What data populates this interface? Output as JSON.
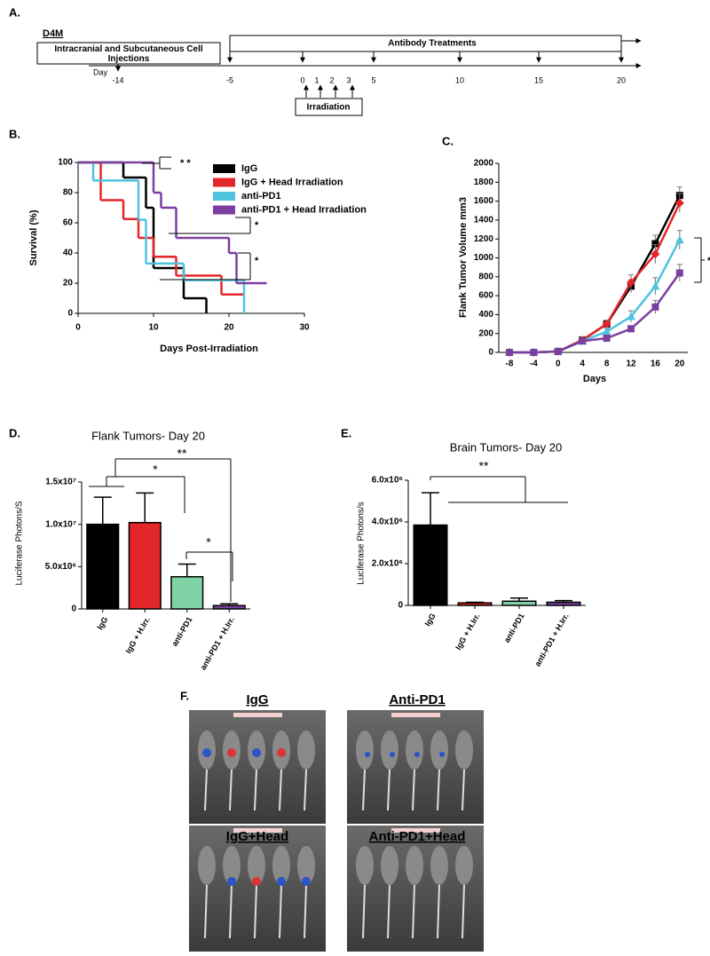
{
  "panels": {
    "a": "A.",
    "b": "B.",
    "c": "C.",
    "d": "D.",
    "e": "E.",
    "f": "F."
  },
  "timeline": {
    "model": "D4M",
    "injection": "Intracranial and Subcutaneous Cell Injections",
    "treatment": "Antibody Treatments",
    "day_label": "Day",
    "days": [
      -14,
      -5,
      0,
      1,
      2,
      3,
      5,
      10,
      15,
      20
    ],
    "irradiation": "Irradiation"
  },
  "chart_data": [
    {
      "type": "step",
      "ylabel": "Survival (%)",
      "xlabel": "Days Post-Irradiation",
      "xlim": [
        0,
        30
      ],
      "xticks": [
        0,
        10,
        20,
        30
      ],
      "ylim": [
        0,
        100
      ],
      "yticks": [
        0,
        20,
        40,
        60,
        80,
        100
      ],
      "series": [
        {
          "name": "IgG",
          "color": "#000000",
          "x": [
            0,
            6,
            9,
            10,
            14,
            17
          ],
          "values": [
            100,
            90,
            70,
            30,
            10,
            0
          ]
        },
        {
          "name": "IgG + Head Irradiation",
          "color": "#e3262a",
          "x": [
            0,
            3,
            6,
            8,
            10,
            13,
            19,
            22
          ],
          "values": [
            100,
            75,
            62.5,
            50,
            37.5,
            25,
            12.5,
            12.5
          ]
        },
        {
          "name": "anti-PD1",
          "color": "#4fc3de",
          "x": [
            0,
            2,
            8,
            9,
            14,
            22
          ],
          "values": [
            100,
            88,
            62,
            33,
            22,
            0
          ]
        },
        {
          "name": "anti-PD1 + Head Irradiation",
          "color": "#7b3fa0",
          "x": [
            0,
            10,
            11,
            13,
            20,
            21,
            25
          ],
          "values": [
            100,
            80,
            70,
            50,
            40,
            20,
            20
          ]
        }
      ],
      "annotations": [
        "* *",
        "*",
        "*"
      ]
    },
    {
      "type": "line",
      "ylabel": "Flank Tumor Volume mm3",
      "xlabel": "Days",
      "categories": [
        -8,
        -4,
        0,
        4,
        8,
        12,
        16,
        20
      ],
      "ylim": [
        0,
        2000
      ],
      "yticks": [
        0,
        200,
        400,
        600,
        800,
        1000,
        1200,
        1400,
        1600,
        1800,
        2000
      ],
      "series": [
        {
          "color": "#000000",
          "marker": "square",
          "values": [
            0,
            0,
            10,
            130,
            300,
            700,
            1150,
            1660
          ],
          "errors": [
            0,
            0,
            5,
            20,
            40,
            70,
            90,
            90
          ]
        },
        {
          "color": "#e3262a",
          "marker": "diamond",
          "values": [
            0,
            0,
            10,
            130,
            300,
            740,
            1040,
            1580
          ],
          "errors": [
            0,
            0,
            5,
            20,
            40,
            80,
            100,
            100
          ]
        },
        {
          "color": "#4fc3de",
          "marker": "triangle",
          "values": [
            0,
            0,
            10,
            120,
            220,
            380,
            700,
            1190
          ],
          "errors": [
            0,
            0,
            5,
            15,
            30,
            60,
            90,
            100
          ]
        },
        {
          "color": "#7b3fa0",
          "marker": "square",
          "values": [
            0,
            0,
            10,
            120,
            150,
            250,
            480,
            840
          ],
          "errors": [
            0,
            0,
            5,
            15,
            20,
            30,
            70,
            90
          ]
        }
      ],
      "annotations": [
        "*"
      ]
    },
    {
      "type": "bar",
      "title": "Flank Tumors- Day 20",
      "ylabel": "Luciferase Photons/S",
      "categories": [
        "IgG",
        "IgG + H.Irr.",
        "anti-PD1",
        "anti-PD1 + H.Irr."
      ],
      "values": [
        10000000,
        10200000,
        3800000,
        400000
      ],
      "errors": [
        3200000,
        3500000,
        1500000,
        200000
      ],
      "colors": [
        "#000000",
        "#e3262a",
        "#7fd3a6",
        "#7b3fa0"
      ],
      "ylim": [
        0,
        15000000
      ],
      "yticks": [
        0,
        {
          "value": 5000000,
          "label": "5.0x10⁶"
        },
        {
          "value": 10000000,
          "label": "1.0x10⁷"
        },
        {
          "value": 15000000,
          "label": "1.5x10⁷"
        }
      ],
      "annotations": [
        "*",
        "**",
        "*"
      ]
    },
    {
      "type": "bar",
      "title": "Brain Tumors- Day 20",
      "ylabel": "Luciferase Photons/s",
      "categories": [
        "IgG",
        "IgG + H.Irr.",
        "anti-PD1",
        "anti-PD1 + H.Irr."
      ],
      "values": [
        3850000,
        120000,
        200000,
        150000
      ],
      "errors": [
        1550000,
        30000,
        150000,
        80000
      ],
      "colors": [
        "#000000",
        "#e3262a",
        "#7fd3a6",
        "#7b3fa0"
      ],
      "ylim": [
        0,
        6000000
      ],
      "yticks": [
        0,
        {
          "value": 2000000,
          "label": "2.0x10⁶"
        },
        {
          "value": 4000000,
          "label": "4.0x10⁶"
        },
        {
          "value": 6000000,
          "label": "6.0x10⁶"
        }
      ],
      "annotations": [
        "**"
      ]
    }
  ],
  "imaging": {
    "groups": [
      "IgG",
      "Anti-PD1",
      "IgG+Head",
      "Anti-PD1+Head"
    ]
  }
}
